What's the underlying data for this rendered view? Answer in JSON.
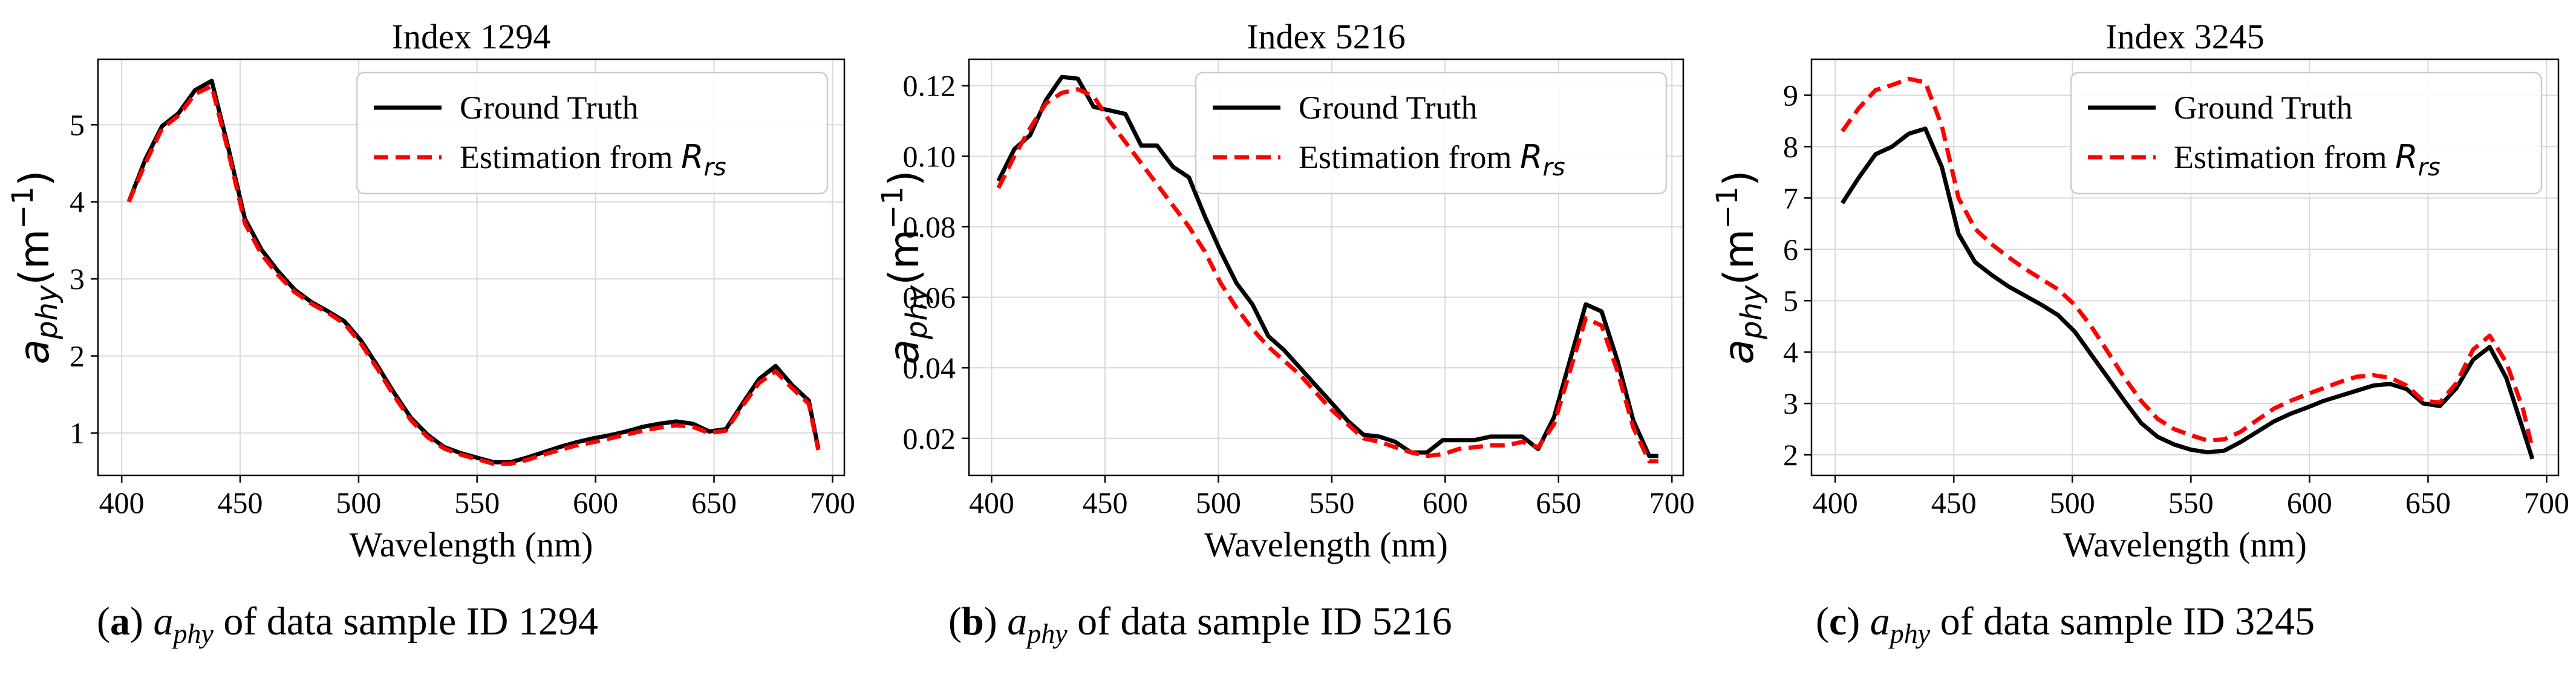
{
  "colors": {
    "ground_truth": "#000000",
    "estimation": "#ff0000",
    "grid": "#d9d9d9",
    "axis": "#000000"
  },
  "chart_data": [
    {
      "type": "line",
      "title": "Index 1294",
      "xlabel": "Wavelength (nm)",
      "ylabel": "a_phy(m^-1)",
      "xlim": [
        390,
        705
      ],
      "ylim": [
        0.45,
        5.85
      ],
      "xticks": [
        400,
        450,
        500,
        550,
        600,
        650,
        700
      ],
      "yticks": [
        1,
        2,
        3,
        4,
        5
      ],
      "ytick_labels": [
        "1",
        "2",
        "3",
        "4",
        "5"
      ],
      "x": [
        403,
        410,
        417,
        424,
        431,
        438,
        445,
        452,
        459,
        466,
        473,
        480,
        487,
        494,
        501,
        508,
        515,
        522,
        529,
        536,
        543,
        550,
        557,
        564,
        571,
        578,
        585,
        592,
        599,
        606,
        613,
        620,
        627,
        634,
        641,
        648,
        655,
        662,
        669,
        676,
        683,
        690,
        694
      ],
      "series": [
        {
          "name": "Ground Truth",
          "style": "solid",
          "values": [
            4.0,
            4.55,
            4.98,
            5.15,
            5.45,
            5.57,
            4.7,
            3.78,
            3.38,
            3.1,
            2.86,
            2.7,
            2.58,
            2.45,
            2.2,
            1.87,
            1.52,
            1.2,
            0.98,
            0.82,
            0.74,
            0.68,
            0.62,
            0.62,
            0.68,
            0.75,
            0.82,
            0.88,
            0.93,
            0.97,
            1.02,
            1.08,
            1.12,
            1.15,
            1.12,
            1.02,
            1.05,
            1.38,
            1.7,
            1.87,
            1.62,
            1.42,
            0.8
          ]
        },
        {
          "name": "Estimation from R_rs",
          "style": "dashed",
          "values": [
            4.0,
            4.5,
            4.95,
            5.12,
            5.4,
            5.5,
            4.65,
            3.72,
            3.32,
            3.05,
            2.83,
            2.68,
            2.56,
            2.42,
            2.16,
            1.83,
            1.48,
            1.17,
            0.95,
            0.8,
            0.72,
            0.66,
            0.6,
            0.6,
            0.65,
            0.72,
            0.78,
            0.84,
            0.88,
            0.93,
            0.98,
            1.03,
            1.07,
            1.1,
            1.08,
            1.0,
            1.03,
            1.35,
            1.65,
            1.8,
            1.58,
            1.38,
            0.78
          ]
        }
      ],
      "legend": {
        "position": "top-right",
        "labels": [
          "Ground Truth",
          "Estimation from"
        ],
        "subscript_symbol": "R",
        "subscript": "rs"
      }
    },
    {
      "type": "line",
      "title": "Index 5216",
      "xlabel": "Wavelength (nm)",
      "ylabel": "a_phy(m^-1)",
      "xlim": [
        390,
        705
      ],
      "ylim": [
        0.0095,
        0.1275
      ],
      "xticks": [
        400,
        450,
        500,
        550,
        600,
        650,
        700
      ],
      "yticks": [
        0.02,
        0.04,
        0.06,
        0.08,
        0.1,
        0.12
      ],
      "ytick_labels": [
        "0.02",
        "0.04",
        "0.06",
        "0.08",
        "0.10",
        "0.12"
      ],
      "x": [
        403,
        410,
        417,
        424,
        431,
        438,
        445,
        452,
        459,
        466,
        473,
        480,
        487,
        494,
        501,
        508,
        515,
        522,
        529,
        536,
        543,
        550,
        557,
        564,
        571,
        578,
        585,
        592,
        599,
        606,
        613,
        620,
        627,
        634,
        641,
        648,
        655,
        662,
        669,
        676,
        683,
        690,
        694
      ],
      "series": [
        {
          "name": "Ground Truth",
          "style": "solid",
          "values": [
            0.093,
            0.102,
            0.106,
            0.116,
            0.1225,
            0.122,
            0.114,
            0.113,
            0.112,
            0.103,
            0.103,
            0.097,
            0.094,
            0.083,
            0.073,
            0.064,
            0.058,
            0.049,
            0.045,
            0.04,
            0.035,
            0.03,
            0.025,
            0.021,
            0.0205,
            0.019,
            0.016,
            0.016,
            0.0195,
            0.0195,
            0.0195,
            0.0205,
            0.0205,
            0.0205,
            0.017,
            0.026,
            0.042,
            0.058,
            0.056,
            0.042,
            0.025,
            0.015,
            0.015
          ]
        },
        {
          "name": "Estimation from R_rs",
          "style": "dashed",
          "values": [
            0.091,
            0.1,
            0.108,
            0.115,
            0.118,
            0.119,
            0.117,
            0.11,
            0.104,
            0.098,
            0.092,
            0.086,
            0.08,
            0.073,
            0.064,
            0.057,
            0.051,
            0.046,
            0.042,
            0.038,
            0.033,
            0.028,
            0.024,
            0.02,
            0.019,
            0.0175,
            0.016,
            0.015,
            0.0155,
            0.017,
            0.0175,
            0.018,
            0.018,
            0.019,
            0.0175,
            0.024,
            0.039,
            0.054,
            0.052,
            0.039,
            0.023,
            0.0135,
            0.0135
          ]
        }
      ],
      "legend": {
        "position": "top-right",
        "labels": [
          "Ground Truth",
          "Estimation from"
        ],
        "subscript_symbol": "R",
        "subscript": "rs"
      }
    },
    {
      "type": "line",
      "title": "Index 3245",
      "xlabel": "Wavelength (nm)",
      "ylabel": "a_phy(m^-1)",
      "xlim": [
        390,
        705
      ],
      "ylim": [
        1.6,
        9.7
      ],
      "xticks": [
        400,
        450,
        500,
        550,
        600,
        650,
        700
      ],
      "yticks": [
        2,
        3,
        4,
        5,
        6,
        7,
        8,
        9
      ],
      "ytick_labels": [
        "2",
        "3",
        "4",
        "5",
        "6",
        "7",
        "8",
        "9"
      ],
      "x": [
        403,
        410,
        417,
        424,
        431,
        438,
        445,
        452,
        459,
        466,
        473,
        480,
        487,
        494,
        501,
        508,
        515,
        522,
        529,
        536,
        543,
        550,
        557,
        564,
        571,
        578,
        585,
        592,
        599,
        606,
        613,
        620,
        627,
        634,
        641,
        648,
        655,
        662,
        669,
        676,
        683,
        690,
        694
      ],
      "series": [
        {
          "name": "Ground Truth",
          "style": "solid",
          "values": [
            6.9,
            7.4,
            7.85,
            8.0,
            8.25,
            8.35,
            7.6,
            6.3,
            5.75,
            5.5,
            5.28,
            5.1,
            4.92,
            4.72,
            4.4,
            3.95,
            3.5,
            3.05,
            2.62,
            2.35,
            2.2,
            2.1,
            2.05,
            2.08,
            2.25,
            2.45,
            2.65,
            2.8,
            2.92,
            3.05,
            3.15,
            3.25,
            3.35,
            3.38,
            3.28,
            3.0,
            2.95,
            3.3,
            3.85,
            4.1,
            3.5,
            2.5,
            1.92
          ]
        },
        {
          "name": "Estimation from R_rs",
          "style": "dashed",
          "values": [
            8.3,
            8.75,
            9.1,
            9.2,
            9.32,
            9.25,
            8.4,
            7.0,
            6.4,
            6.1,
            5.85,
            5.62,
            5.42,
            5.22,
            4.92,
            4.5,
            4.0,
            3.5,
            3.05,
            2.7,
            2.5,
            2.38,
            2.28,
            2.3,
            2.45,
            2.68,
            2.9,
            3.05,
            3.18,
            3.3,
            3.42,
            3.52,
            3.55,
            3.5,
            3.35,
            3.05,
            3.02,
            3.4,
            4.05,
            4.32,
            3.8,
            2.9,
            2.12
          ]
        }
      ],
      "legend": {
        "position": "top-right",
        "labels": [
          "Ground Truth",
          "Estimation from"
        ],
        "subscript_symbol": "R",
        "subscript": "rs"
      }
    }
  ],
  "captions": [
    {
      "letter": "a",
      "symbol": "a",
      "subscript": "phy",
      "text": "of data sample ID 1294"
    },
    {
      "letter": "b",
      "symbol": "a",
      "subscript": "phy",
      "text": "of data sample ID 5216"
    },
    {
      "letter": "c",
      "symbol": "a",
      "subscript": "phy",
      "text": "of data sample ID 3245"
    }
  ]
}
